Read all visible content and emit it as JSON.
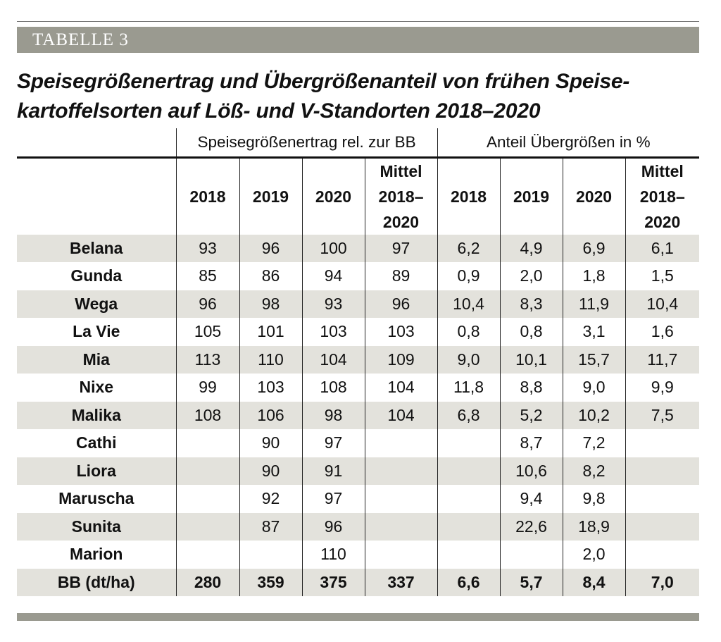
{
  "label": "TABELLE 3",
  "title": {
    "line1": "Speisegrößenertrag und Übergrößenanteil von frühen Speise-",
    "line2": "kartoffelsorten auf Löß- und V-Standorten 2018–2020"
  },
  "groups": {
    "yield": "Speisegrößenertrag rel. zur BB",
    "oversize": "Anteil Übergrößen in %"
  },
  "columns": {
    "y2018": "2018",
    "y2019": "2019",
    "y2020": "2020",
    "mean_l1": "Mittel",
    "mean_l2": "2018–",
    "mean_l3": "2020"
  },
  "rows": [
    {
      "name": "Belana",
      "values": [
        "93",
        "96",
        "100",
        "97",
        "6,2",
        "4,9",
        "6,9",
        "6,1"
      ]
    },
    {
      "name": "Gunda",
      "values": [
        "85",
        "86",
        "94",
        "89",
        "0,9",
        "2,0",
        "1,8",
        "1,5"
      ]
    },
    {
      "name": "Wega",
      "values": [
        "96",
        "98",
        "93",
        "96",
        "10,4",
        "8,3",
        "11,9",
        "10,4"
      ]
    },
    {
      "name": "La Vie",
      "values": [
        "105",
        "101",
        "103",
        "103",
        "0,8",
        "0,8",
        "3,1",
        "1,6"
      ]
    },
    {
      "name": "Mia",
      "values": [
        "113",
        "110",
        "104",
        "109",
        "9,0",
        "10,1",
        "15,7",
        "11,7"
      ]
    },
    {
      "name": "Nixe",
      "values": [
        "99",
        "103",
        "108",
        "104",
        "11,8",
        "8,8",
        "9,0",
        "9,9"
      ]
    },
    {
      "name": "Malika",
      "values": [
        "108",
        "106",
        "98",
        "104",
        "6,8",
        "5,2",
        "10,2",
        "7,5"
      ]
    },
    {
      "name": "Cathi",
      "values": [
        "",
        "90",
        "97",
        "",
        "",
        "8,7",
        "7,2",
        ""
      ]
    },
    {
      "name": "Liora",
      "values": [
        "",
        "90",
        "91",
        "",
        "",
        "10,6",
        "8,2",
        ""
      ]
    },
    {
      "name": "Maruscha",
      "values": [
        "",
        "92",
        "97",
        "",
        "",
        "9,4",
        "9,8",
        ""
      ]
    },
    {
      "name": "Sunita",
      "values": [
        "",
        "87",
        "96",
        "",
        "",
        "22,6",
        "18,9",
        ""
      ]
    },
    {
      "name": "Marion",
      "values": [
        "",
        "",
        "110",
        "",
        "",
        "",
        "2,0",
        ""
      ]
    },
    {
      "name": "BB (dt/ha)",
      "values": [
        "280",
        "359",
        "375",
        "337",
        "6,6",
        "5,7",
        "8,4",
        "7,0"
      ]
    }
  ]
}
